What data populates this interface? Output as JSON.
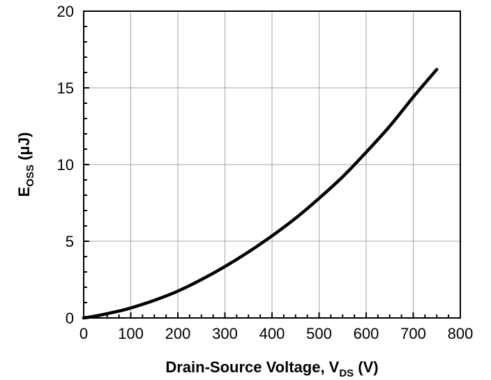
{
  "chart_data": {
    "type": "line",
    "xlabel": {
      "main": "Drain-Source Voltage, V",
      "sub": "DS",
      "tail": " (V)"
    },
    "ylabel": {
      "main": "E",
      "sub": "OSS",
      "tail": " (μJ)"
    },
    "xlim": [
      0,
      800
    ],
    "ylim": [
      0,
      20
    ],
    "xticks": [
      0,
      100,
      200,
      300,
      400,
      500,
      600,
      700,
      800
    ],
    "yticks": [
      0,
      5,
      10,
      15,
      20
    ],
    "grid": true,
    "legend": "none",
    "series": [
      {
        "color": "#000000",
        "x": [
          0,
          25,
          50,
          75,
          100,
          150,
          200,
          250,
          300,
          350,
          400,
          450,
          500,
          550,
          600,
          650,
          700,
          750
        ],
        "y": [
          0,
          0.12,
          0.28,
          0.45,
          0.65,
          1.15,
          1.75,
          2.5,
          3.35,
          4.3,
          5.35,
          6.5,
          7.8,
          9.2,
          10.8,
          12.5,
          14.4,
          16.2
        ]
      }
    ]
  }
}
